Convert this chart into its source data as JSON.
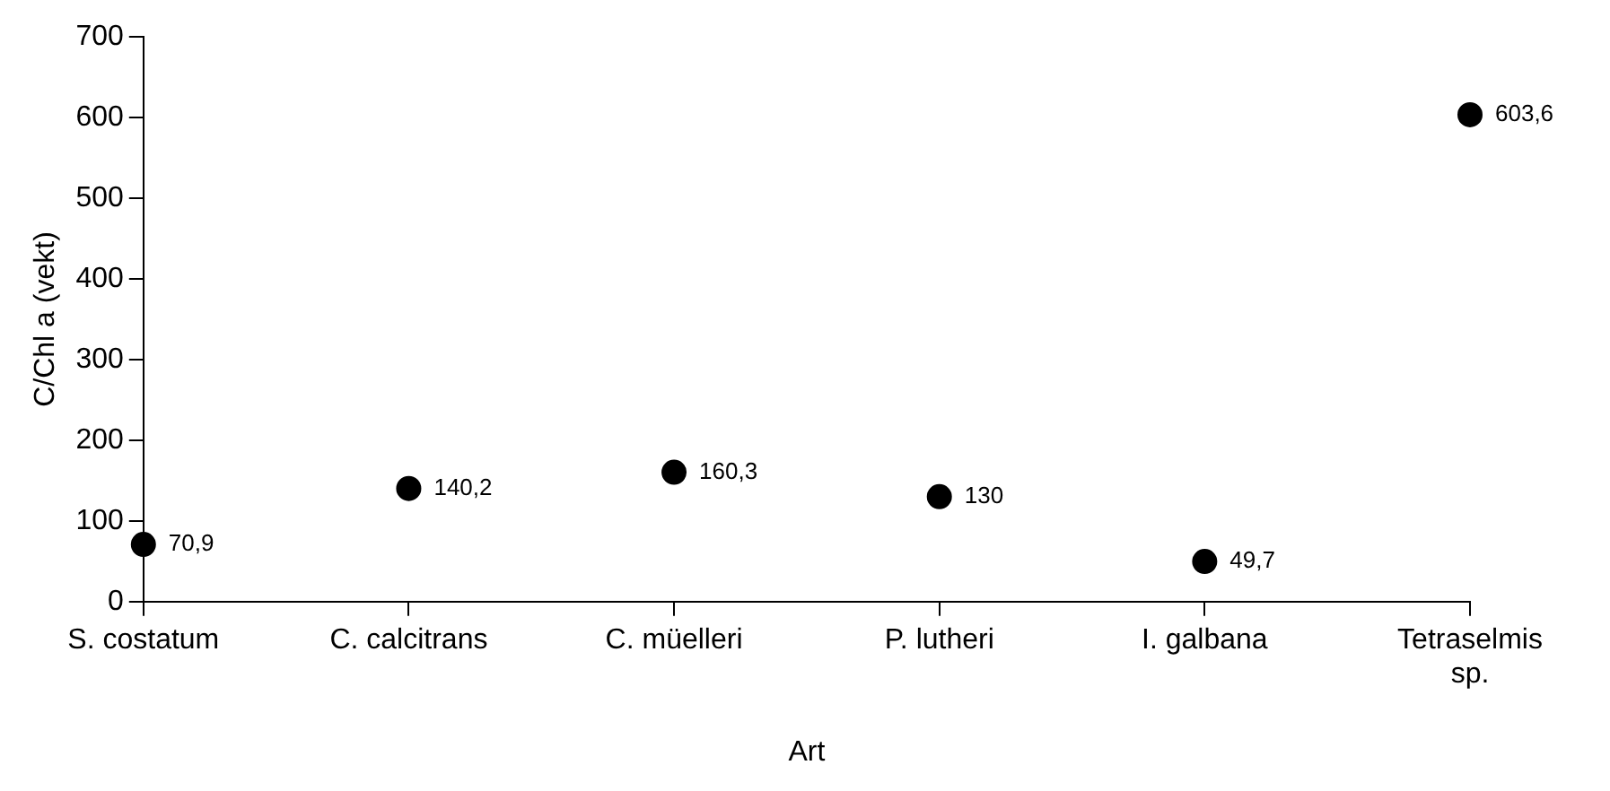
{
  "chart_data": {
    "type": "scatter",
    "xlabel": "Art",
    "ylabel": "C/Chl a (vekt)",
    "categories": [
      "S. costatum",
      "C. calcitrans",
      "C. müelleri",
      "P. lutheri",
      "I. galbana",
      "Tetraselmis sp."
    ],
    "series": [
      {
        "color": "#000000",
        "values": [
          70.9,
          140.2,
          160.3,
          130,
          49.7,
          603.6
        ],
        "value_labels": [
          "70,9",
          "140,2",
          "160,3",
          "130",
          "49,7",
          "603,6"
        ]
      }
    ],
    "ylim": [
      0,
      700
    ],
    "yticks": [
      0,
      100,
      200,
      300,
      400,
      500,
      600,
      700
    ],
    "grid": false,
    "legend": false,
    "marker": "circle"
  }
}
